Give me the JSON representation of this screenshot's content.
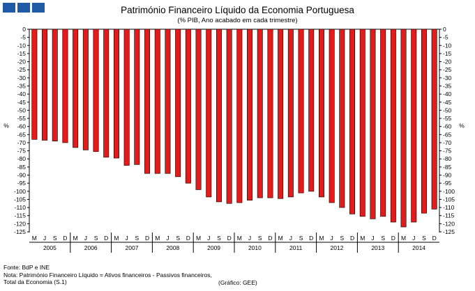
{
  "logo": {
    "color": "#1f5aa6"
  },
  "chart_data": {
    "type": "bar",
    "title": "Património Financeiro Líquido da Economia Portuguesa",
    "subtitle": "(% PIB, Ano acabado em cada trimestre)",
    "ylabel": "%",
    "ylim": [
      -125,
      0
    ],
    "ytick_step": 5,
    "grid": false,
    "bar_color": "#e31b1b",
    "quarter_labels": [
      "M",
      "J",
      "S",
      "D"
    ],
    "years": [
      "2005",
      "2006",
      "2007",
      "2008",
      "2009",
      "2010",
      "2011",
      "2012",
      "2013",
      "2014"
    ],
    "values": [
      -68,
      -68.5,
      -69,
      -70,
      -73,
      -74.5,
      -75.5,
      -79,
      -79.5,
      -84,
      -83.5,
      -89,
      -89,
      -89,
      -91,
      -95,
      -99,
      -103.5,
      -106.5,
      -107.5,
      -107,
      -105.5,
      -104,
      -104,
      -104.5,
      -103.5,
      -101,
      -100,
      -103.5,
      -107,
      -110,
      -114,
      -115.5,
      -117,
      -115.5,
      -119,
      -122,
      -119,
      -113.5,
      -111
    ]
  },
  "footer": {
    "line1": "Fonte: BdP e INE",
    "line2": "Nota: Património Financeiro Líquido = Ativos financeiros - Passivos financeiros,",
    "line3": "Total da Economia (S.1)",
    "credit": "(Gráfico: GEE)"
  }
}
